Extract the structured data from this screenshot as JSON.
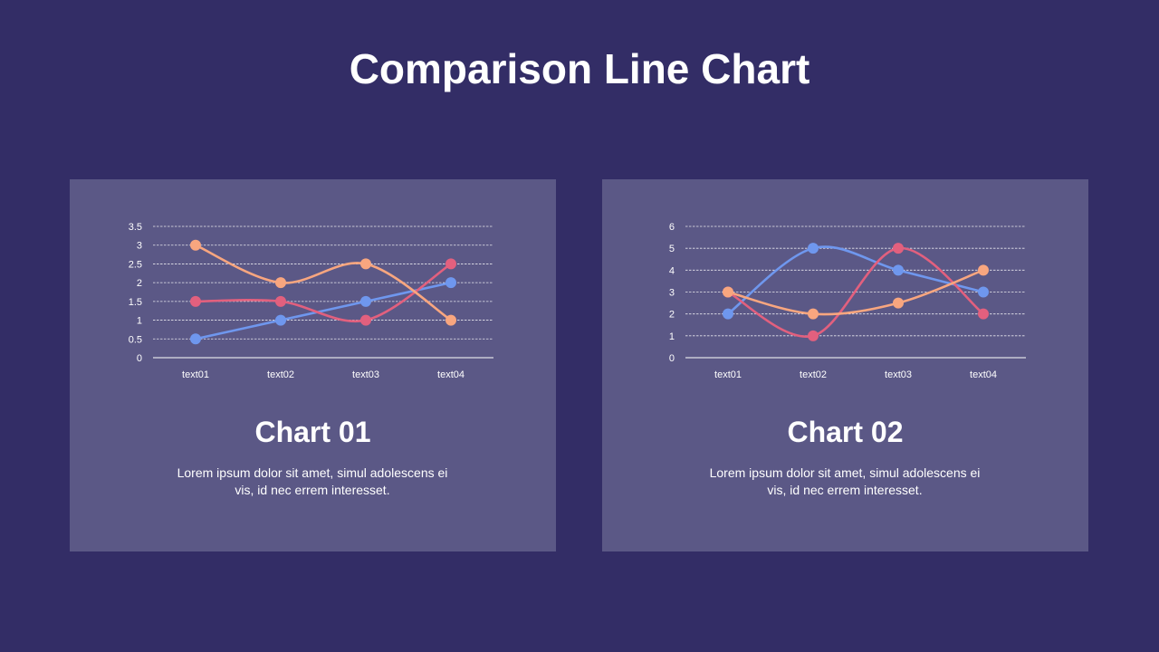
{
  "page": {
    "title": "Comparison Line Chart",
    "background_color": "#332d66",
    "panel_color": "#5b5886"
  },
  "charts": [
    {
      "heading": "Chart 01",
      "description": "Lorem ipsum dolor sit amet, simul adolescens ei vis, id nec errem interesset."
    },
    {
      "heading": "Chart 02",
      "description": "Lorem ipsum dolor sit amet, simul adolescens ei vis, id nec errem interesset."
    }
  ],
  "chart_data": [
    {
      "type": "line",
      "smooth": true,
      "categories": [
        "text01",
        "text02",
        "text03",
        "text04"
      ],
      "ylim": [
        0,
        3.5
      ],
      "yticks": [
        0,
        0.5,
        1,
        1.5,
        2,
        2.5,
        3,
        3.5
      ],
      "grid": true,
      "series": [
        {
          "color": "#6f97ee",
          "values": [
            0.5,
            1,
            1.5,
            2
          ]
        },
        {
          "color": "#e2607e",
          "values": [
            1.5,
            1.5,
            1,
            2.5
          ]
        },
        {
          "color": "#f8a67f",
          "values": [
            3,
            2,
            2.5,
            1
          ]
        }
      ]
    },
    {
      "type": "line",
      "smooth": true,
      "categories": [
        "text01",
        "text02",
        "text03",
        "text04"
      ],
      "ylim": [
        0,
        6
      ],
      "yticks": [
        0,
        1,
        2,
        3,
        4,
        5,
        6
      ],
      "grid": true,
      "series": [
        {
          "color": "#6f97ee",
          "values": [
            2,
            5,
            4,
            3
          ]
        },
        {
          "color": "#e2607e",
          "values": [
            3,
            1,
            5,
            2
          ]
        },
        {
          "color": "#f8a67f",
          "values": [
            3,
            2,
            2.5,
            4
          ]
        }
      ]
    }
  ]
}
